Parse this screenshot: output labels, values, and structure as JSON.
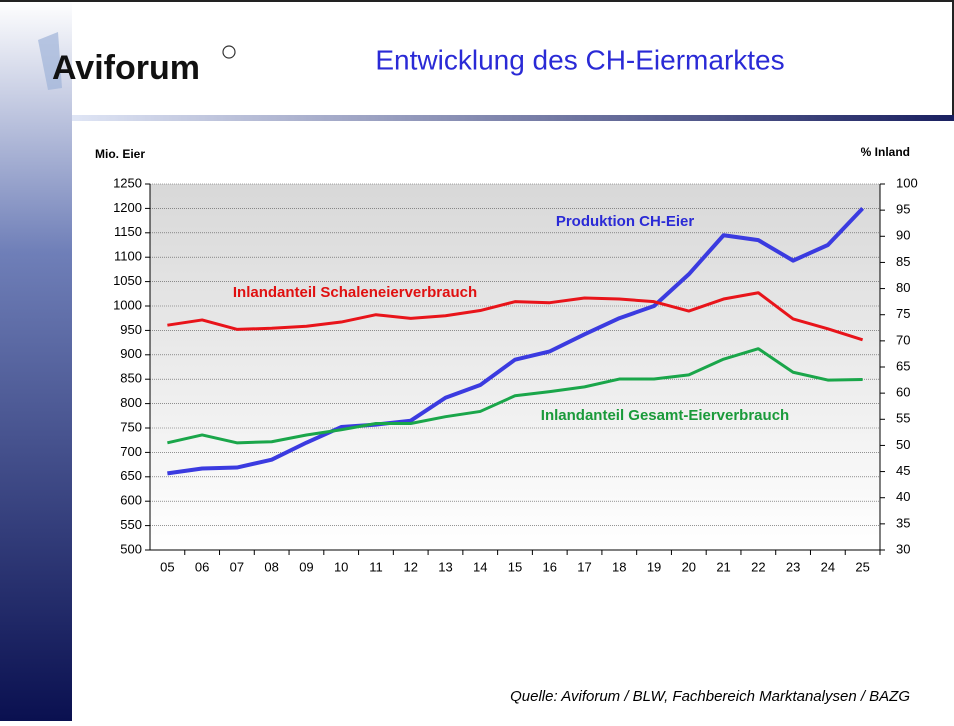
{
  "logo": "Aviforum",
  "chart_data": {
    "type": "line",
    "title": "Entwicklung des CH-Eiermarktes",
    "y_label": "Mio. Eier",
    "y2_label": "% Inland",
    "source": "Quelle: Aviforum / BLW, Fachbereich Marktanalysen / BAZG",
    "categories": [
      "05",
      "06",
      "07",
      "08",
      "09",
      "10",
      "11",
      "12",
      "13",
      "14",
      "15",
      "16",
      "17",
      "18",
      "19",
      "20",
      "21",
      "22",
      "23",
      "24",
      "25"
    ],
    "ylim": [
      500,
      1250
    ],
    "yticks": [
      500,
      550,
      600,
      650,
      700,
      750,
      800,
      850,
      900,
      950,
      1000,
      1050,
      1100,
      1150,
      1200,
      1250
    ],
    "y2lim": [
      30,
      100
    ],
    "y2ticks": [
      30,
      35,
      40,
      45,
      50,
      55,
      60,
      65,
      70,
      75,
      80,
      85,
      90,
      95,
      100
    ],
    "grid": true,
    "series": [
      {
        "name": "Produktion CH-Eier",
        "color": "#3b3be0",
        "axis": "y",
        "values": [
          657,
          667,
          669,
          685,
          720,
          752,
          757,
          765,
          812,
          838,
          890,
          907,
          942,
          975,
          1000,
          1065,
          1145,
          1135,
          1093,
          1125,
          1200
        ]
      },
      {
        "name": "Inlandanteil Schaleneierverbrauch",
        "color": "#e8141a",
        "axis": "y2",
        "values": [
          73,
          74,
          72.2,
          72.4,
          72.8,
          73.6,
          75,
          74.3,
          74.8,
          75.8,
          77.5,
          77.3,
          78.2,
          78,
          77.5,
          75.7,
          78,
          79.2,
          74.2,
          72.3,
          70.2
        ]
      },
      {
        "name": "Inlandanteil Gesamt-Eierverbrauch",
        "color": "#1aa64a",
        "axis": "y2",
        "values": [
          50.5,
          52,
          50.5,
          50.7,
          52,
          53,
          54.2,
          54.2,
          55.5,
          56.5,
          59.5,
          60.3,
          61.2,
          62.7,
          62.7,
          63.5,
          66.5,
          68.5,
          64,
          62.5,
          62.6
        ]
      }
    ]
  }
}
